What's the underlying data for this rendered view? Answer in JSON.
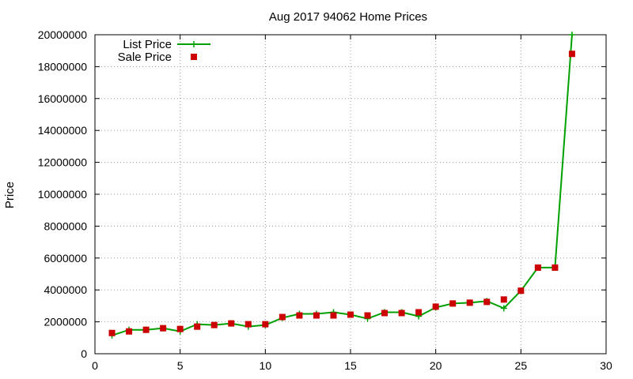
{
  "chart_data": {
    "type": "line",
    "title": "Aug 2017 94062 Home Prices",
    "xlabel": "",
    "ylabel": "Price",
    "xlim": [
      0,
      30
    ],
    "ylim": [
      0,
      20000000
    ],
    "x_ticks": [
      0,
      5,
      10,
      15,
      20,
      25,
      30
    ],
    "y_ticks": [
      0,
      2000000,
      4000000,
      6000000,
      8000000,
      10000000,
      12000000,
      14000000,
      16000000,
      18000000,
      20000000
    ],
    "grid": true,
    "legend_position": "top-left",
    "x": [
      1,
      2,
      3,
      4,
      5,
      6,
      7,
      8,
      9,
      10,
      11,
      12,
      13,
      14,
      15,
      16,
      17,
      18,
      19,
      20,
      21,
      22,
      23,
      24,
      25,
      26,
      27,
      28
    ],
    "series": [
      {
        "name": "List Price",
        "style": "line-plus",
        "color": "#00a000",
        "values": [
          1150000,
          1500000,
          1500000,
          1600000,
          1400000,
          1850000,
          1800000,
          1900000,
          1700000,
          1800000,
          2250000,
          2500000,
          2500000,
          2600000,
          2450000,
          2200000,
          2600000,
          2600000,
          2350000,
          2900000,
          3150000,
          3200000,
          3300000,
          2850000,
          3950000,
          5400000,
          5400000,
          20000000
        ]
      },
      {
        "name": "Sale Price",
        "style": "square",
        "color": "#cc0000",
        "values": [
          1300000,
          1400000,
          1500000,
          1600000,
          1550000,
          1700000,
          1800000,
          1900000,
          1850000,
          1850000,
          2300000,
          2400000,
          2400000,
          2400000,
          2450000,
          2400000,
          2550000,
          2550000,
          2600000,
          2950000,
          3150000,
          3200000,
          3250000,
          3400000,
          3950000,
          5400000,
          5400000,
          18800000
        ]
      }
    ]
  }
}
